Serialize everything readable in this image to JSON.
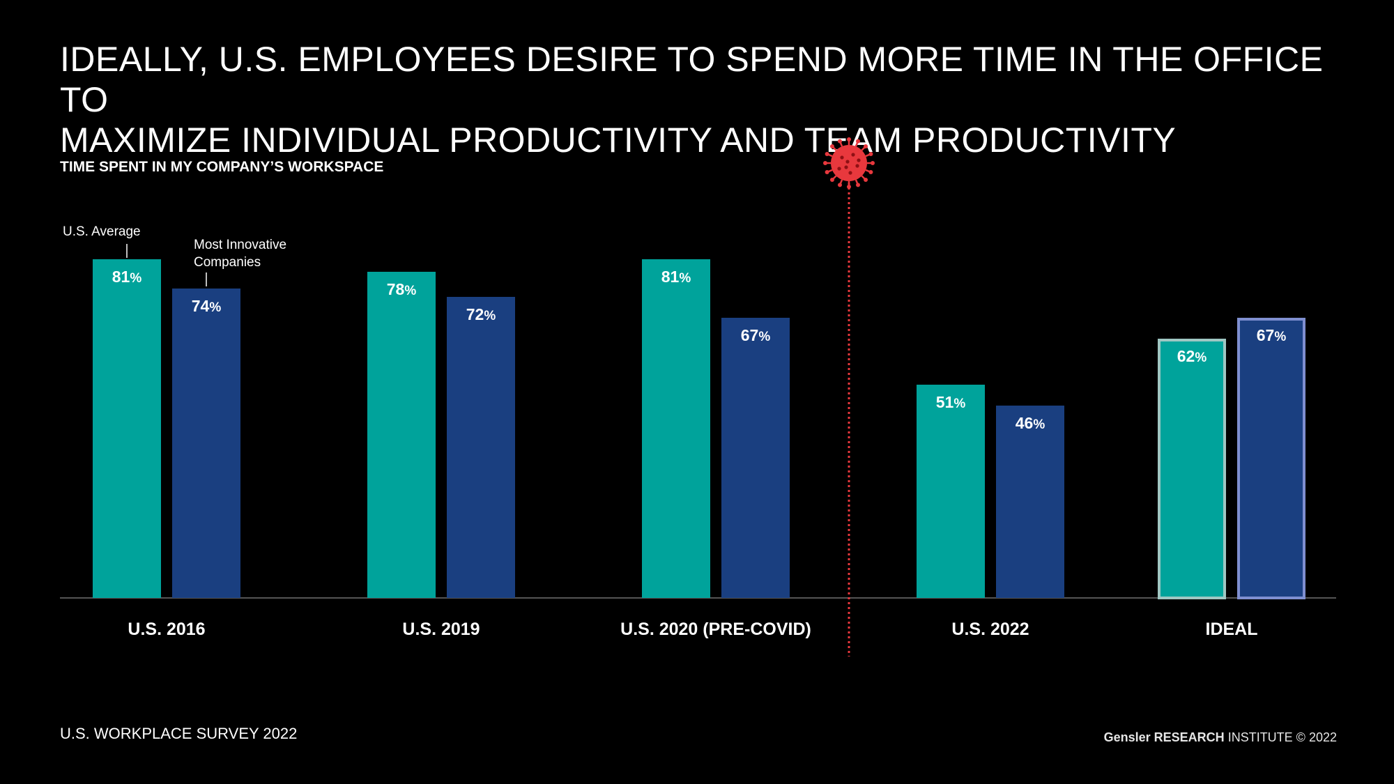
{
  "title_line1": "IDEALLY, U.S. EMPLOYEES DESIRE TO SPEND MORE TIME IN THE OFFICE TO",
  "title_line2": "MAXIMIZE INDIVIDUAL PRODUCTIVITY AND TEAM PRODUCTIVITY",
  "footer": {
    "source": "U.S. WORKPLACE SURVEY 2022",
    "brand_bold": "Gensler RESEARCH",
    "brand_rest": " INSTITUTE © 2022"
  },
  "colors": {
    "us_average": "#00a39b",
    "innovative": "#1a3f80",
    "ideal_border_teal": "#9fc7c3",
    "ideal_border_blue": "#7f8fd0",
    "covid_marker": "#e8383d",
    "axis": "#555555"
  },
  "chart_data": {
    "type": "bar",
    "title": "TIME SPENT IN MY COMPANY’S WORKSPACE",
    "categories": [
      "U.S. 2016",
      "U.S. 2019",
      "U.S. 2020 (PRE-COVID)",
      "U.S. 2022",
      "IDEAL"
    ],
    "series": [
      {
        "name": "U.S. Average",
        "values": [
          81,
          78,
          81,
          51,
          62
        ]
      },
      {
        "name": "Most Innovative Companies",
        "values": [
          74,
          72,
          67,
          46,
          67
        ]
      }
    ],
    "value_suffix": "%",
    "ylim": [
      0,
      100
    ],
    "legend_labels": [
      "U.S. Average",
      "Most Innovative",
      "Companies"
    ],
    "divider": {
      "between": [
        "U.S. 2020 (PRE-COVID)",
        "U.S. 2022"
      ],
      "icon": "virus-icon"
    }
  }
}
